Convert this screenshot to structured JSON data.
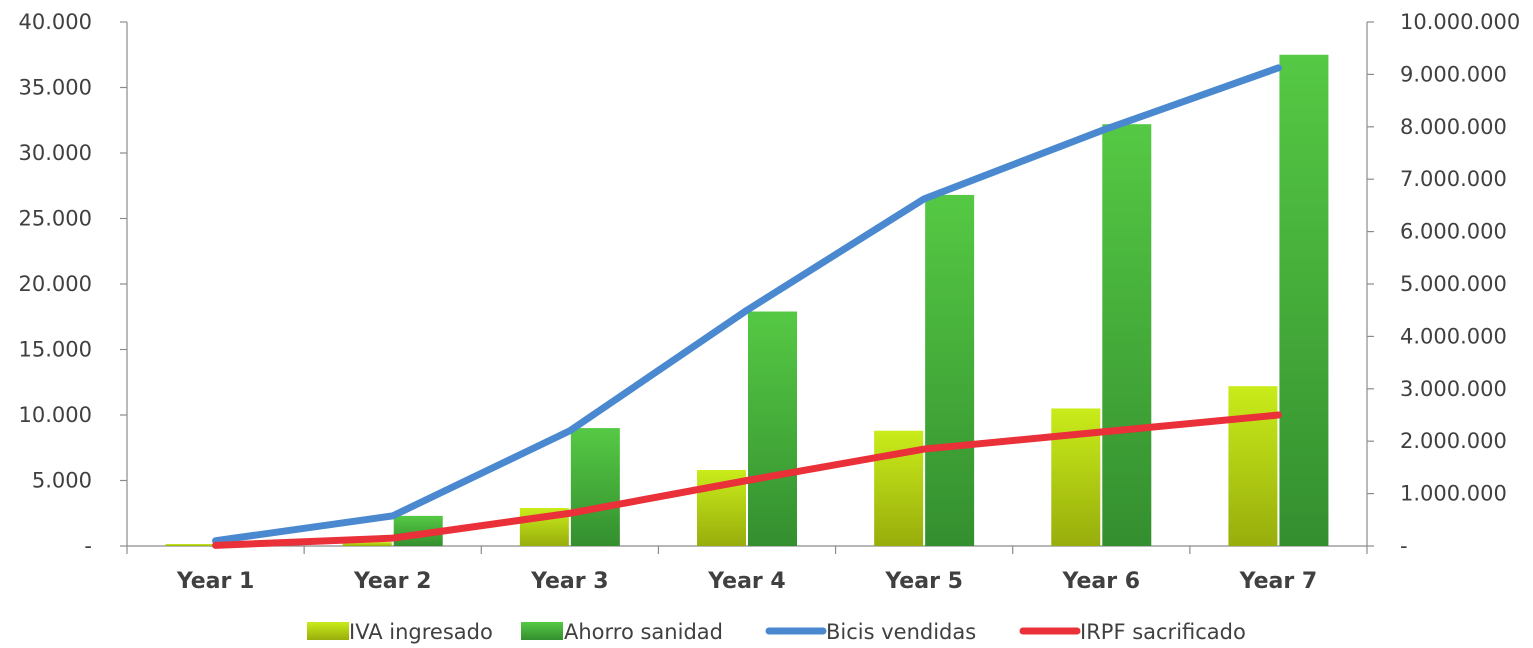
{
  "chart_data": {
    "type": "bar",
    "categories": [
      "Year 1",
      "Year 2",
      "Year 3",
      "Year 4",
      "Year 5",
      "Year 6",
      "Year 7"
    ],
    "left_axis": {
      "ylim": [
        0,
        40000
      ],
      "ticks": [
        0,
        5000,
        10000,
        15000,
        20000,
        25000,
        30000,
        35000,
        40000
      ],
      "tick_labels": [
        "-",
        "5.000",
        "10.000",
        "15.000",
        "20.000",
        "25.000",
        "30.000",
        "35.000",
        "40.000"
      ]
    },
    "right_axis": {
      "ylim": [
        0,
        10000000
      ],
      "ticks": [
        0,
        1000000,
        2000000,
        3000000,
        4000000,
        5000000,
        6000000,
        7000000,
        8000000,
        9000000,
        10000000
      ],
      "tick_labels": [
        "-",
        "1.000.000",
        "2.000.000",
        "3.000.000",
        "4.000.000",
        "5.000.000",
        "6.000.000",
        "7.000.000",
        "8.000.000",
        "9.000.000",
        "10.000.000"
      ]
    },
    "series": [
      {
        "name": "IVA ingresado",
        "type": "bar",
        "axis": "left",
        "color": "#b5d40e",
        "values": [
          150,
          300,
          2900,
          5800,
          8800,
          10500,
          12200
        ]
      },
      {
        "name": "Ahorro sanidad",
        "type": "bar",
        "axis": "left",
        "color": "#3fa33a",
        "values": [
          120,
          2300,
          9000,
          17900,
          26800,
          32200,
          37500
        ]
      },
      {
        "name": "Bicis vendidas",
        "type": "line",
        "axis": "left",
        "color": "#4a89d0",
        "values": [
          400,
          2300,
          8800,
          18000,
          26500,
          31700,
          36500
        ]
      },
      {
        "name": "IRPF sacrificado",
        "type": "line",
        "axis": "left",
        "color": "#ea3038",
        "values": [
          50,
          600,
          2500,
          5000,
          7400,
          8700,
          10000
        ]
      }
    ],
    "grid": false,
    "legend_position": "bottom"
  }
}
